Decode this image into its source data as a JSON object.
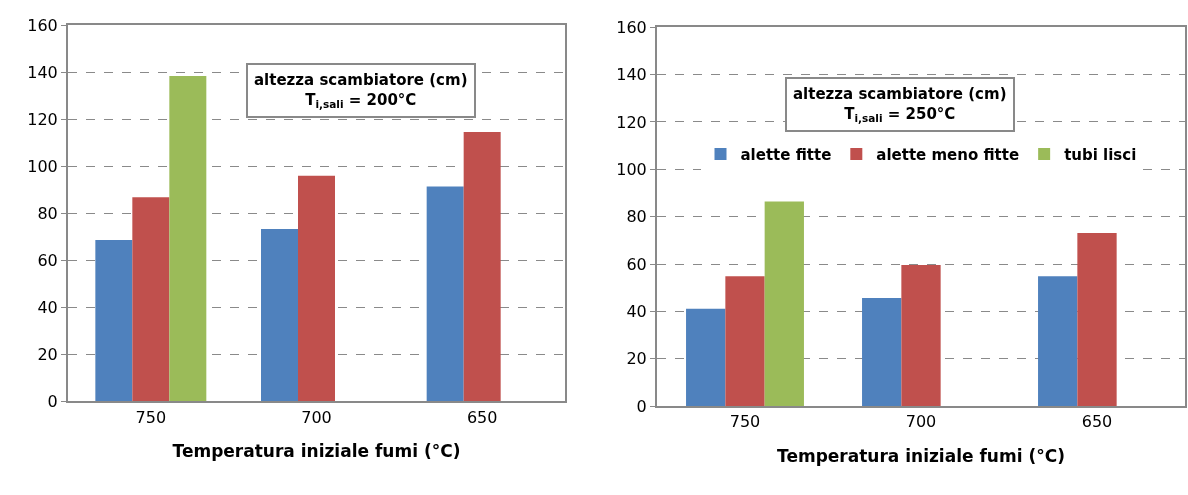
{
  "chart_data": [
    {
      "type": "bar",
      "categories": [
        "750",
        "700",
        "650"
      ],
      "xlabel": "Temperatura iniziale fumi (°C)",
      "ylim": [
        0,
        160
      ],
      "yticks": [
        0,
        20,
        40,
        60,
        80,
        100,
        120,
        140,
        160
      ],
      "grid": "y",
      "legend": false,
      "annotations": [
        "altezza scambiatore (cm)\nT$_{i,sali}$ = 200°C"
      ],
      "series": [
        {
          "color": "#4f81bd",
          "values": [
            68.7,
            73.3,
            91.4
          ]
        },
        {
          "color": "#c0504d",
          "values": [
            86.8,
            96,
            114.6
          ]
        },
        {
          "color": "#9bbb59",
          "values": [
            138.4,
            null,
            null
          ]
        }
      ]
    },
    {
      "type": "bar",
      "categories": [
        "750",
        "700",
        "650"
      ],
      "xlabel": "Temperatura iniziale fumi (°C)",
      "ylim": [
        0,
        160
      ],
      "yticks": [
        0,
        20,
        40,
        60,
        80,
        100,
        120,
        140,
        160
      ],
      "grid": "y",
      "legend": "top",
      "annotations": [
        "altezza scambiatore (cm)\nT$_{i,sali}$ = 250°C"
      ],
      "series": [
        {
          "name": "alette fitte",
          "color": "#4f81bd",
          "values": [
            41.1,
            45.7,
            54.9
          ]
        },
        {
          "name": "alette meno fitte",
          "color": "#c0504d",
          "values": [
            54.9,
            59.6,
            73.1
          ]
        },
        {
          "name": "tubi lisci",
          "color": "#9bbb59",
          "values": [
            86.4,
            null,
            null
          ]
        }
      ]
    }
  ]
}
